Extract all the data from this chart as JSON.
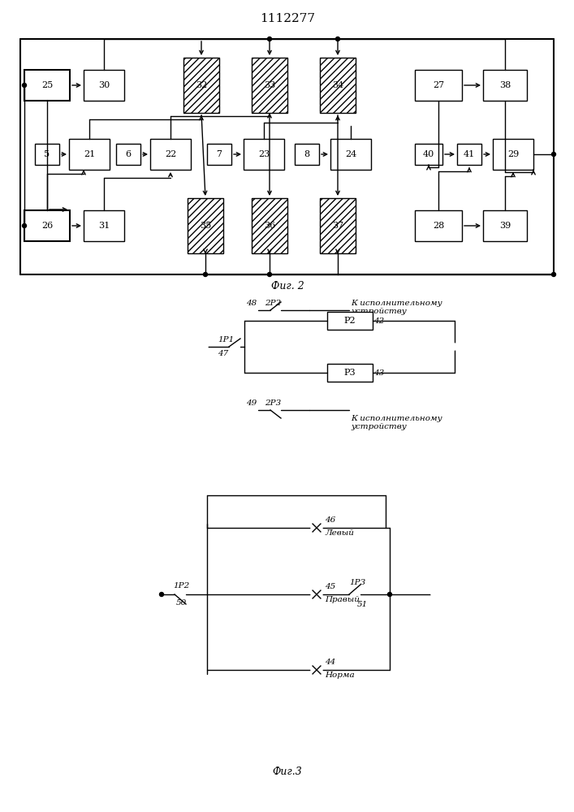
{
  "title": "1112277",
  "fig2_label": "Фиг. 2",
  "fig3_label": "Фиг.3",
  "bg_color": "#ffffff",
  "line_color": "#000000"
}
